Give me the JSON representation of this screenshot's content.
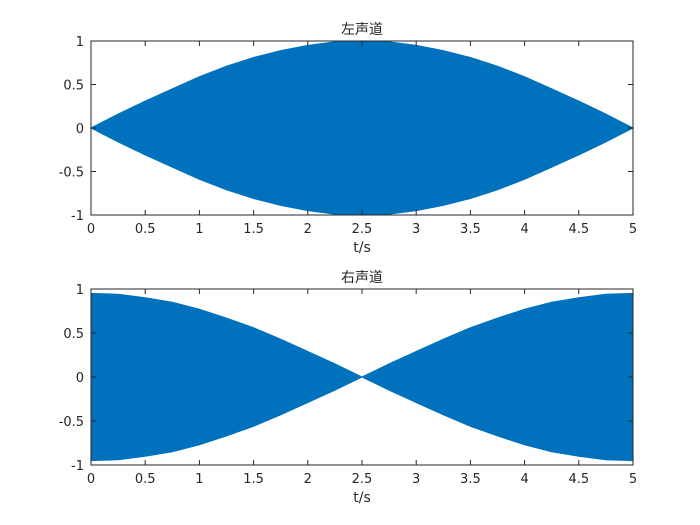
{
  "chart_data": [
    {
      "type": "area",
      "title": "左声道",
      "xlabel": "t/s",
      "ylabel": "",
      "xlim": [
        0,
        5
      ],
      "ylim": [
        -1,
        1
      ],
      "xticks": [
        0,
        0.5,
        1,
        1.5,
        2,
        2.5,
        3,
        3.5,
        4,
        4.5,
        5
      ],
      "xtick_labels": [
        "0",
        "0.5",
        "1",
        "1.5",
        "2",
        "2.5",
        "3",
        "3.5",
        "4",
        "4.5",
        "5"
      ],
      "yticks": [
        1,
        0.5,
        0,
        -0.5,
        -1
      ],
      "ytick_labels": [
        "1",
        "0.5",
        "0",
        "-0.5",
        "-1"
      ],
      "grid": false,
      "color": "#0072BD",
      "envelope": {
        "x": [
          0,
          0.25,
          0.5,
          0.75,
          1,
          1.25,
          1.5,
          1.75,
          2,
          2.25,
          2.5,
          2.75,
          3,
          3.25,
          3.5,
          3.75,
          4,
          4.25,
          4.5,
          4.75,
          5
        ],
        "upper": [
          0,
          0.16,
          0.31,
          0.45,
          0.59,
          0.71,
          0.81,
          0.89,
          0.95,
          0.99,
          1,
          0.99,
          0.95,
          0.89,
          0.81,
          0.71,
          0.59,
          0.45,
          0.31,
          0.16,
          0
        ],
        "lower": [
          0,
          -0.16,
          -0.31,
          -0.45,
          -0.59,
          -0.71,
          -0.81,
          -0.89,
          -0.95,
          -0.99,
          -1,
          -0.99,
          -0.95,
          -0.89,
          -0.81,
          -0.71,
          -0.59,
          -0.45,
          -0.31,
          -0.16,
          0
        ]
      }
    },
    {
      "type": "area",
      "title": "右声道",
      "xlabel": "t/s",
      "ylabel": "",
      "xlim": [
        0,
        5
      ],
      "ylim": [
        -1,
        1
      ],
      "xticks": [
        0,
        0.5,
        1,
        1.5,
        2,
        2.5,
        3,
        3.5,
        4,
        4.5,
        5
      ],
      "xtick_labels": [
        "0",
        "0.5",
        "1",
        "1.5",
        "2",
        "2.5",
        "3",
        "3.5",
        "4",
        "4.5",
        "5"
      ],
      "yticks": [
        1,
        0.5,
        0,
        -0.5,
        -1
      ],
      "ytick_labels": [
        "1",
        "0.5",
        "0",
        "-0.5",
        "-1"
      ],
      "grid": false,
      "color": "#0072BD",
      "envelope": {
        "x": [
          0,
          0.25,
          0.5,
          0.75,
          1,
          1.25,
          1.5,
          1.75,
          2,
          2.25,
          2.5,
          2.75,
          3,
          3.25,
          3.5,
          3.75,
          4,
          4.25,
          4.5,
          4.75,
          5
        ],
        "upper": [
          0.95,
          0.94,
          0.9,
          0.85,
          0.77,
          0.67,
          0.56,
          0.43,
          0.29,
          0.15,
          0,
          0.15,
          0.29,
          0.43,
          0.56,
          0.67,
          0.77,
          0.85,
          0.9,
          0.94,
          0.95
        ],
        "lower": [
          -0.95,
          -0.94,
          -0.9,
          -0.85,
          -0.77,
          -0.67,
          -0.56,
          -0.43,
          -0.29,
          -0.15,
          0,
          -0.15,
          -0.29,
          -0.43,
          -0.56,
          -0.67,
          -0.77,
          -0.85,
          -0.9,
          -0.94,
          -0.95
        ]
      }
    }
  ]
}
